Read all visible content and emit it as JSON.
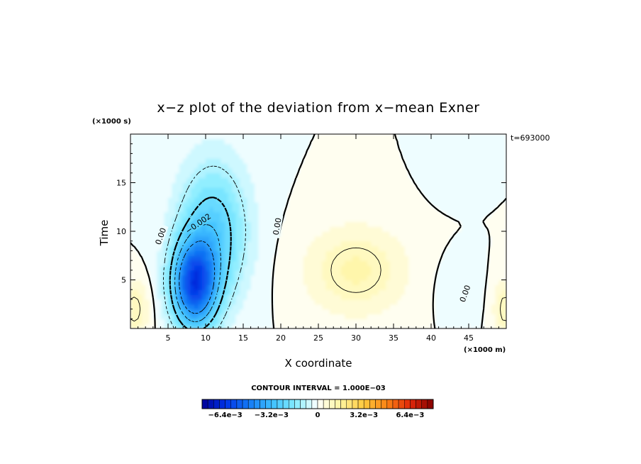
{
  "chart_data": {
    "type": "heatmap",
    "title": "x−z plot of the deviation from x−mean Exner",
    "xlabel": "X coordinate",
    "ylabel": "Time",
    "x_unit": "(×1000 m)",
    "y_unit": "(×1000 s)",
    "annotation": "t=693000",
    "xlim": [
      0,
      50
    ],
    "ylim": [
      0,
      20
    ],
    "x_ticks": [
      5,
      10,
      15,
      20,
      25,
      30,
      35,
      40,
      45
    ],
    "y_ticks": [
      5,
      10,
      15
    ],
    "contour_interval_text": "CONTOUR INTERVAL = 1.000E−03",
    "contour_labels": [
      "0.00",
      "−0.002",
      "0.00",
      "0.00"
    ],
    "colorbar": {
      "min": -0.008,
      "max": 0.008,
      "tick_labels": [
        "−6.4e−3",
        "−3.2e−3",
        "0",
        "3.2e−3",
        "6.4e−3"
      ],
      "tick_values": [
        -0.0064,
        -0.0032,
        0,
        0.0032,
        0.0064
      ],
      "n_bins": 40
    },
    "field_features": [
      {
        "x": 8.5,
        "y": 4.5,
        "value": -0.0055,
        "sx": 3.0,
        "sy": 4.5
      },
      {
        "x": 11.0,
        "y": 10.0,
        "value": -0.0025,
        "sx": 4.5,
        "sy": 7.0
      },
      {
        "x": 30.0,
        "y": 6.0,
        "value": 0.0013,
        "sx": 6.5,
        "sy": 4.5
      },
      {
        "x": 0.5,
        "y": 2.0,
        "value": 0.0012,
        "sx": 2.0,
        "sy": 3.0
      },
      {
        "x": 49.8,
        "y": 2.0,
        "value": 0.0012,
        "sx": 1.5,
        "sy": 3.0
      },
      {
        "x": 42.5,
        "y": 17.5,
        "value": -0.0004,
        "sx": 2.5,
        "sy": 3.0
      },
      {
        "x": 43.5,
        "y": 4.0,
        "value": -0.0004,
        "sx": 2.5,
        "sy": 3.0
      }
    ]
  }
}
